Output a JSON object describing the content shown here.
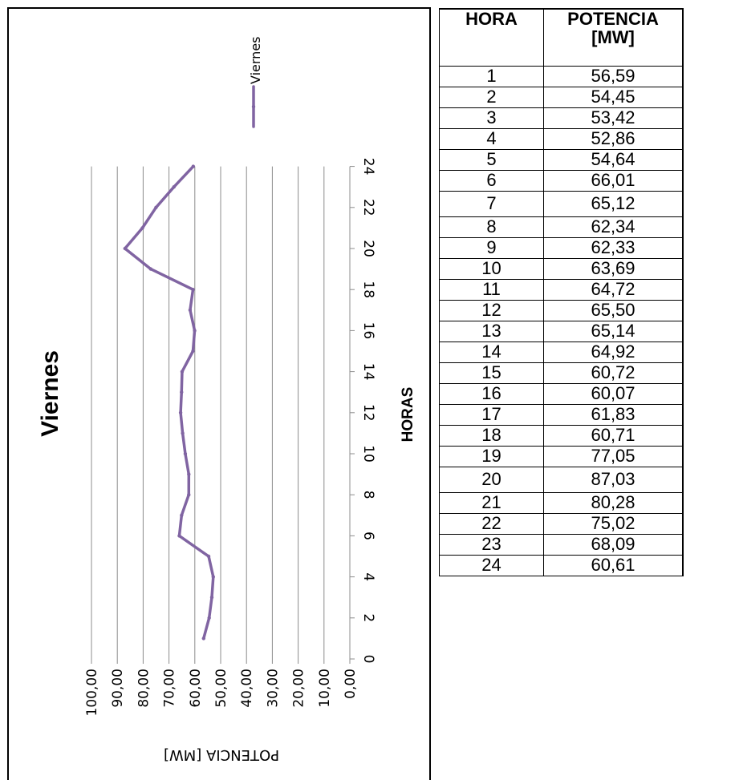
{
  "table": {
    "headers": {
      "hora": "HORA",
      "potencia": "POTENCIA [MW]"
    },
    "rows": [
      {
        "hora": "1",
        "potencia": "56,59"
      },
      {
        "hora": "2",
        "potencia": "54,45"
      },
      {
        "hora": "3",
        "potencia": "53,42"
      },
      {
        "hora": "4",
        "potencia": "52,86"
      },
      {
        "hora": "5",
        "potencia": "54,64"
      },
      {
        "hora": "6",
        "potencia": "66,01"
      },
      {
        "hora": "7",
        "potencia": "65,12"
      },
      {
        "hora": "8",
        "potencia": "62,34"
      },
      {
        "hora": "9",
        "potencia": "62,33"
      },
      {
        "hora": "10",
        "potencia": "63,69"
      },
      {
        "hora": "11",
        "potencia": "64,72"
      },
      {
        "hora": "12",
        "potencia": "65,50"
      },
      {
        "hora": "13",
        "potencia": "65,14"
      },
      {
        "hora": "14",
        "potencia": "64,92"
      },
      {
        "hora": "15",
        "potencia": "60,72"
      },
      {
        "hora": "16",
        "potencia": "60,07"
      },
      {
        "hora": "17",
        "potencia": "61,83"
      },
      {
        "hora": "18",
        "potencia": "60,71"
      },
      {
        "hora": "19",
        "potencia": "77,05"
      },
      {
        "hora": "20",
        "potencia": "87,03"
      },
      {
        "hora": "21",
        "potencia": "80,28"
      },
      {
        "hora": "22",
        "potencia": "75,02"
      },
      {
        "hora": "23",
        "potencia": "68,09"
      },
      {
        "hora": "24",
        "potencia": "60,61"
      }
    ]
  },
  "chart_data": {
    "type": "line",
    "title": "Viernes",
    "orientation": "rotated-90-clockwise",
    "xlabel": "HORAS",
    "ylabel": "POTENCIA [MW]",
    "xlim": [
      0,
      24
    ],
    "ylim": [
      0,
      100
    ],
    "x_ticks": [
      "0",
      "2",
      "4",
      "6",
      "8",
      "10",
      "12",
      "14",
      "16",
      "18",
      "20",
      "22",
      "24"
    ],
    "y_ticks": [
      "0,00",
      "10,00",
      "20,00",
      "30,00",
      "40,00",
      "50,00",
      "60,00",
      "70,00",
      "80,00",
      "90,00",
      "100,00"
    ],
    "grid": true,
    "legend_position": "top",
    "series": [
      {
        "name": "Viernes",
        "color": "#8064a2",
        "x": [
          1,
          2,
          3,
          4,
          5,
          6,
          7,
          8,
          9,
          10,
          11,
          12,
          13,
          14,
          15,
          16,
          17,
          18,
          19,
          20,
          21,
          22,
          23,
          24
        ],
        "values": [
          56.59,
          54.45,
          53.42,
          52.86,
          54.64,
          66.01,
          65.12,
          62.34,
          62.33,
          63.69,
          64.72,
          65.5,
          65.14,
          64.92,
          60.72,
          60.07,
          61.83,
          60.71,
          77.05,
          87.03,
          80.28,
          75.02,
          68.09,
          60.61
        ]
      }
    ]
  }
}
